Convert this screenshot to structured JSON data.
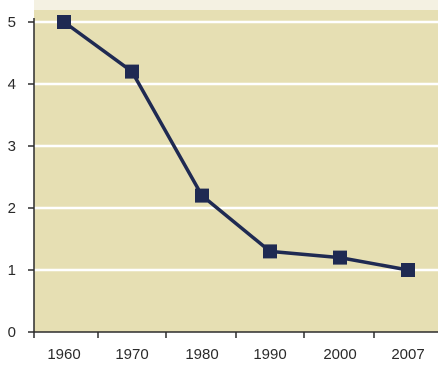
{
  "colors": {
    "plot_background": "#e6dfb3",
    "gridline": "#ffffff",
    "axis": "#2a2a2a",
    "line": "#1f2a52",
    "marker": "#1f2a52",
    "top_fade": "#f7f5ee"
  },
  "chart_data": {
    "type": "line",
    "title": "",
    "xlabel": "",
    "ylabel": "",
    "categories": [
      "1960",
      "1970",
      "1980",
      "1990",
      "2000",
      "2007"
    ],
    "series": [
      {
        "values": [
          5.0,
          4.2,
          2.2,
          1.3,
          1.2,
          1.0
        ]
      }
    ],
    "y_ticks": [
      "0",
      "1",
      "2",
      "3",
      "4",
      "5"
    ],
    "ylim": [
      0,
      5
    ],
    "grid": true,
    "legend": "none",
    "marker": "square"
  }
}
